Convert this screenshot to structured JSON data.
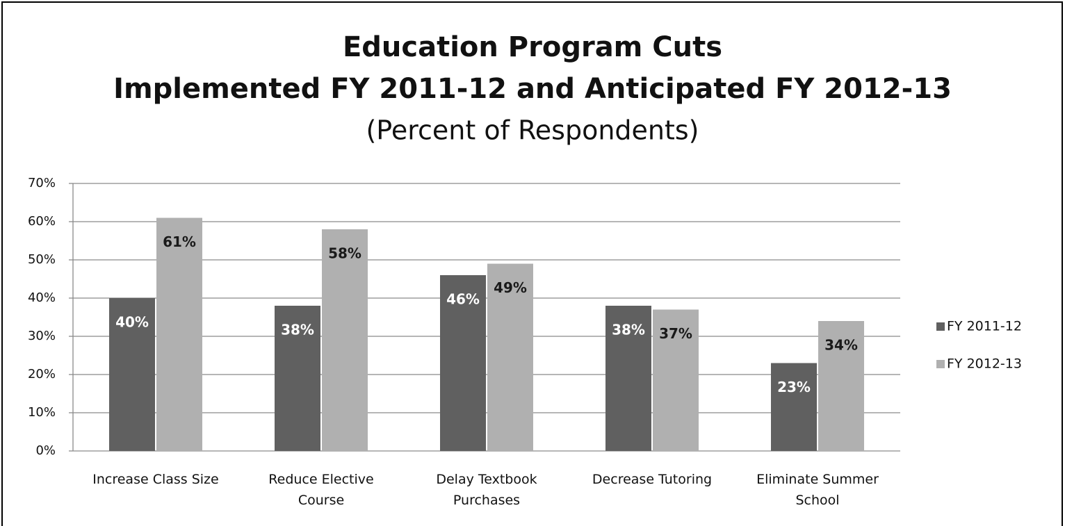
{
  "chart_data": {
    "type": "bar",
    "title": [
      "Education Program Cuts",
      "Implemented FY 2011-12 and Anticipated FY 2012-13"
    ],
    "subtitle": "(Percent of Respondents)",
    "categories": [
      "Increase Class Size",
      "Reduce Elective\nCourse",
      "Delay Textbook\nPurchases",
      "Decrease Tutoring",
      "Eliminate Summer\nSchool"
    ],
    "series": [
      {
        "name": "FY 2011-12",
        "color": "#606060",
        "label_color": "#ffffff",
        "values": [
          40,
          38,
          46,
          38,
          23
        ],
        "value_labels": [
          "40%",
          "38%",
          "46%",
          "38%",
          "23%"
        ]
      },
      {
        "name": "FY 2012-13",
        "color": "#b0b0b0",
        "label_color": "#1a1a1a",
        "values": [
          61,
          58,
          49,
          37,
          34
        ],
        "value_labels": [
          "61%",
          "58%",
          "49%",
          "37%",
          "34%"
        ]
      }
    ],
    "ylim": [
      0,
      70
    ],
    "yticks": [
      {
        "value": 0,
        "label": "0%"
      },
      {
        "value": 10,
        "label": "10%"
      },
      {
        "value": 20,
        "label": "20%"
      },
      {
        "value": 30,
        "label": "30%"
      },
      {
        "value": 40,
        "label": "40%"
      },
      {
        "value": 50,
        "label": "50%"
      },
      {
        "value": 60,
        "label": "60%"
      },
      {
        "value": 70,
        "label": "70%"
      }
    ],
    "grid": true,
    "legend": "right"
  }
}
